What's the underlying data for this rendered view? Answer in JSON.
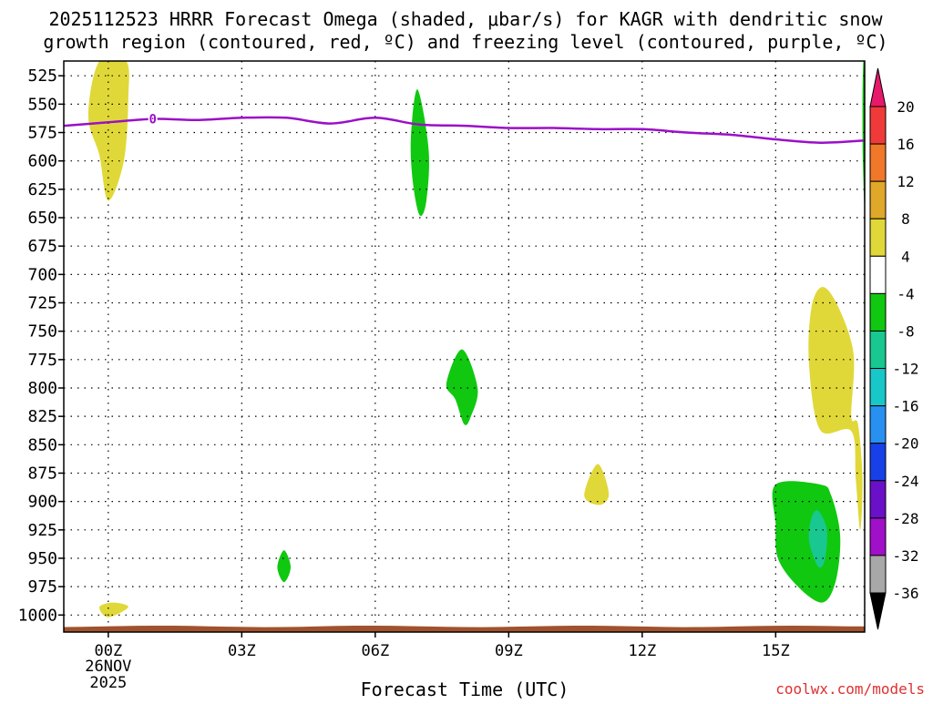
{
  "chart_data": {
    "type": "heatmap",
    "title_lines": [
      "2025112523 HRRR Forecast Omega (shaded, μbar/s) for KAGR with dendritic snow",
      "growth region (contoured, red, ºC) and freezing level (contoured, purple, ºC)"
    ],
    "xlabel": "Forecast Time (UTC)",
    "ylabel": "",
    "x_unit": "forecast hour",
    "xlim": [
      -1,
      17
    ],
    "ylim": [
      1015,
      512
    ],
    "x_ticks": [
      {
        "hour": 0,
        "label": "00Z",
        "sublabels": [
          "26NOV",
          "2025"
        ]
      },
      {
        "hour": 3,
        "label": "03Z",
        "sublabels": []
      },
      {
        "hour": 6,
        "label": "06Z",
        "sublabels": []
      },
      {
        "hour": 9,
        "label": "09Z",
        "sublabels": []
      },
      {
        "hour": 12,
        "label": "12Z",
        "sublabels": []
      },
      {
        "hour": 15,
        "label": "15Z",
        "sublabels": []
      }
    ],
    "y_ticks": [
      525,
      550,
      575,
      600,
      625,
      650,
      675,
      700,
      725,
      750,
      775,
      800,
      825,
      850,
      875,
      900,
      925,
      950,
      975,
      1000
    ],
    "colorbar": {
      "levels": [
        20,
        16,
        12,
        8,
        4,
        -4,
        -8,
        -12,
        -16,
        -20,
        -24,
        -28,
        -32,
        -36
      ],
      "colors": [
        "#e8186a",
        "#f03a3a",
        "#f07828",
        "#e0a828",
        "#e0d838",
        "#ffffff",
        "#10c810",
        "#18c890",
        "#18c8c8",
        "#2890f0",
        "#1840e8",
        "#6a10c8",
        "#a010c8",
        "#a8a8a8",
        "#000000"
      ]
    },
    "freezing_level": {
      "label": "0",
      "color": "#9a10c8",
      "hours": [
        -1,
        0,
        1,
        2,
        3,
        4,
        5,
        6,
        7,
        8,
        9,
        10,
        11,
        12,
        13,
        14,
        15,
        16,
        17
      ],
      "pressure_hpa": [
        569,
        566,
        563,
        564,
        562,
        562,
        567,
        562,
        568,
        569,
        571,
        571,
        572,
        572,
        575,
        577,
        581,
        584,
        582
      ]
    },
    "terrain": {
      "color": "#a0522d",
      "pressure_top_hpa": 1010
    },
    "omega_areas": [
      {
        "name": "yellow-00z-upper",
        "value_range": [
          4,
          8
        ],
        "color": "#e0d838",
        "points": [
          [
            -0.2,
            512
          ],
          [
            0.4,
            512
          ],
          [
            0.45,
            545
          ],
          [
            0.35,
            600
          ],
          [
            0.0,
            635
          ],
          [
            -0.2,
            595
          ],
          [
            -0.45,
            560
          ]
        ]
      },
      {
        "name": "yellow-00z-sfc",
        "value_range": [
          4,
          8
        ],
        "color": "#e0d838",
        "points": [
          [
            -0.2,
            993
          ],
          [
            0.1,
            989
          ],
          [
            0.45,
            993
          ],
          [
            0.0,
            1002
          ]
        ]
      },
      {
        "name": "green-07z-upper",
        "value_range": [
          -8,
          -4
        ],
        "color": "#10c810",
        "points": [
          [
            6.95,
            537
          ],
          [
            7.2,
            590
          ],
          [
            7.15,
            635
          ],
          [
            7.0,
            648
          ],
          [
            6.85,
            620
          ],
          [
            6.8,
            580
          ]
        ]
      },
      {
        "name": "green-08z",
        "value_range": [
          -8,
          -4
        ],
        "color": "#10c810",
        "points": [
          [
            7.95,
            766
          ],
          [
            8.3,
            800
          ],
          [
            8.15,
            825
          ],
          [
            8.0,
            832
          ],
          [
            7.8,
            810
          ],
          [
            7.6,
            796
          ]
        ]
      },
      {
        "name": "green-04z",
        "value_range": [
          -8,
          -4
        ],
        "color": "#10c810",
        "points": [
          [
            3.95,
            943
          ],
          [
            4.1,
            958
          ],
          [
            3.95,
            971
          ],
          [
            3.8,
            958
          ]
        ]
      },
      {
        "name": "yellow-11z",
        "value_range": [
          4,
          8
        ],
        "color": "#e0d838",
        "points": [
          [
            11.0,
            867
          ],
          [
            11.25,
            893
          ],
          [
            11.05,
            903
          ],
          [
            10.7,
            895
          ]
        ]
      },
      {
        "name": "yellow-16z",
        "value_range": [
          4,
          8
        ],
        "color": "#e0d838",
        "points": [
          [
            16.05,
            711
          ],
          [
            16.4,
            728
          ],
          [
            16.75,
            770
          ],
          [
            16.7,
            825
          ],
          [
            16.85,
            832
          ],
          [
            16.95,
            880
          ],
          [
            16.9,
            925
          ],
          [
            16.8,
            880
          ],
          [
            16.7,
            838
          ],
          [
            16.0,
            837
          ],
          [
            15.75,
            780
          ],
          [
            15.8,
            730
          ]
        ]
      },
      {
        "name": "green-16z-lower",
        "value_range": [
          -8,
          -4
        ],
        "color": "#10c810",
        "points": [
          [
            15.0,
            885
          ],
          [
            16.0,
            885
          ],
          [
            16.25,
            895
          ],
          [
            16.45,
            930
          ],
          [
            16.35,
            970
          ],
          [
            16.05,
            989
          ],
          [
            15.5,
            975
          ],
          [
            15.05,
            950
          ],
          [
            15.0,
            920
          ]
        ]
      },
      {
        "name": "teal-16z-core",
        "value_range": [
          -12,
          -8
        ],
        "color": "#18c890",
        "points": [
          [
            15.95,
            908
          ],
          [
            16.15,
            925
          ],
          [
            16.1,
            952
          ],
          [
            15.95,
            957
          ],
          [
            15.75,
            935
          ],
          [
            15.8,
            915
          ]
        ]
      },
      {
        "name": "green-17z-edge",
        "value_range": [
          -8,
          -4
        ],
        "color": "#10c810",
        "points": [
          [
            16.97,
            512
          ],
          [
            17.0,
            512
          ],
          [
            17.0,
            635
          ],
          [
            16.96,
            600
          ],
          [
            16.95,
            550
          ]
        ]
      }
    ],
    "watermark": "coolwx.com/models"
  }
}
